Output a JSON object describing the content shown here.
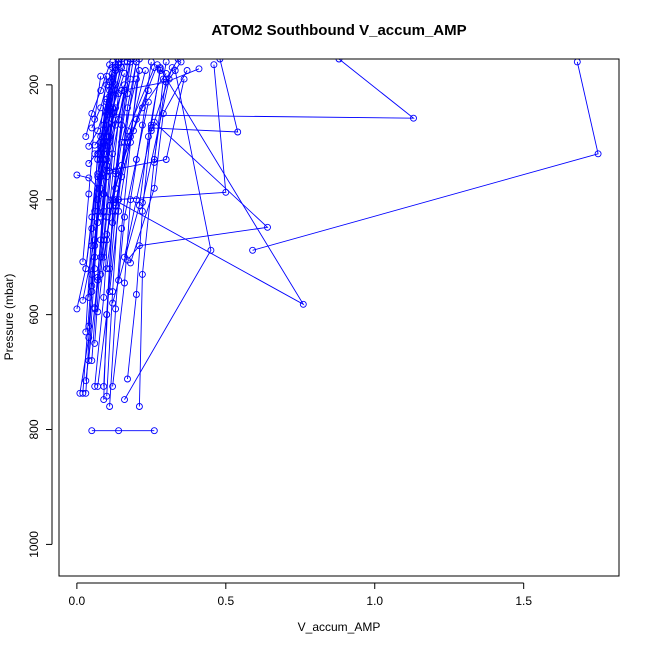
{
  "chart_data": {
    "type": "line",
    "title": "ATOM2 Southbound V_accum_AMP",
    "xlabel": "V_accum_AMP",
    "ylabel": "Pressure (mbar)",
    "xlim": [
      -0.06,
      1.82
    ],
    "ylim": [
      1055,
      155
    ],
    "y_reversed": true,
    "x_ticks": [
      0,
      0.5,
      1.0,
      1.5
    ],
    "x_tick_labels": [
      "0.0",
      "0.5",
      "1.0",
      "1.5"
    ],
    "y_ticks": [
      200,
      400,
      600,
      800,
      1000
    ],
    "y_tick_labels": [
      "200",
      "400",
      "600",
      "800",
      "1000"
    ],
    "grid": false,
    "series_color": "#0000ff",
    "marker": "open-circle",
    "series": [
      {
        "points": [
          [
            0.05,
            802
          ],
          [
            0.14,
            802
          ],
          [
            0.26,
            802
          ]
        ]
      },
      {
        "points": [
          [
            0.03,
            737
          ],
          [
            0.05,
            560
          ],
          [
            0.07,
            400
          ],
          [
            0.1,
            290
          ],
          [
            0.14,
            160
          ]
        ]
      },
      {
        "points": [
          [
            0.02,
            737
          ],
          [
            0.05,
            530
          ],
          [
            0.08,
            380
          ],
          [
            0.12,
            250
          ],
          [
            0.15,
            155
          ]
        ]
      },
      {
        "points": [
          [
            0.01,
            737
          ],
          [
            0.04,
            640
          ],
          [
            0.06,
            480
          ],
          [
            0.09,
            330
          ],
          [
            0.13,
            175
          ]
        ]
      },
      {
        "points": [
          [
            0.07,
            725
          ],
          [
            0.1,
            600
          ],
          [
            0.13,
            420
          ],
          [
            0.16,
            300
          ],
          [
            0.2,
            160
          ]
        ]
      },
      {
        "points": [
          [
            0.06,
            725
          ],
          [
            0.09,
            570
          ],
          [
            0.11,
            410
          ],
          [
            0.14,
            260
          ],
          [
            0.18,
            155
          ]
        ]
      },
      {
        "points": [
          [
            0.12,
            725
          ],
          [
            0.16,
            545
          ],
          [
            0.18,
            400
          ],
          [
            0.22,
            270
          ],
          [
            0.25,
            160
          ]
        ]
      },
      {
        "points": [
          [
            0.09,
            725
          ],
          [
            0.11,
            520
          ],
          [
            0.13,
            350
          ],
          [
            0.17,
            215
          ],
          [
            0.19,
            155
          ]
        ]
      },
      {
        "points": [
          [
            0.03,
            715
          ],
          [
            0.06,
            590
          ],
          [
            0.08,
            470
          ],
          [
            0.1,
            340
          ],
          [
            0.12,
            160
          ]
        ]
      },
      {
        "points": [
          [
            0.17,
            712
          ],
          [
            0.2,
            565
          ],
          [
            0.22,
            420
          ],
          [
            0.25,
            270
          ],
          [
            0.28,
            170
          ]
        ]
      },
      {
        "points": [
          [
            0.11,
            760
          ],
          [
            0.13,
            590
          ],
          [
            0.15,
            450
          ],
          [
            0.18,
            300
          ],
          [
            0.21,
            155
          ]
        ]
      },
      {
        "points": [
          [
            0.21,
            760
          ],
          [
            0.22,
            530
          ],
          [
            0.26,
            330
          ],
          [
            0.3,
            190
          ],
          [
            0.34,
            155
          ]
        ]
      },
      {
        "points": [
          [
            0.16,
            748
          ],
          [
            0.45,
            488
          ],
          [
            0.33,
            175
          ]
        ]
      },
      {
        "points": [
          [
            0.09,
            748
          ],
          [
            0.1,
            600
          ],
          [
            0.12,
            420
          ],
          [
            0.15,
            270
          ],
          [
            0.18,
            160
          ]
        ]
      },
      {
        "points": [
          [
            0.1,
            742
          ],
          [
            0.12,
            560
          ],
          [
            0.14,
            400
          ],
          [
            0.17,
            240
          ],
          [
            0.2,
            160
          ]
        ]
      },
      {
        "points": [
          [
            0.05,
            680
          ],
          [
            0.07,
            540
          ],
          [
            0.09,
            390
          ],
          [
            0.12,
            240
          ],
          [
            0.16,
            160
          ]
        ]
      },
      {
        "points": [
          [
            0.04,
            680
          ],
          [
            0.06,
            520
          ],
          [
            0.08,
            360
          ],
          [
            0.11,
            220
          ],
          [
            0.14,
            155
          ]
        ]
      },
      {
        "points": [
          [
            0.06,
            650
          ],
          [
            0.08,
            500
          ],
          [
            0.1,
            360
          ],
          [
            0.13,
            210
          ]
        ]
      },
      {
        "points": [
          [
            0.03,
            630
          ],
          [
            0.05,
            450
          ],
          [
            0.07,
            320
          ],
          [
            0.1,
            185
          ]
        ]
      },
      {
        "points": [
          [
            0.04,
            620
          ],
          [
            0.06,
            500
          ],
          [
            0.08,
            330
          ],
          [
            0.11,
            195
          ]
        ]
      },
      {
        "points": [
          [
            0.0,
            590
          ],
          [
            0.03,
            520
          ],
          [
            0.07,
            360
          ],
          [
            0.09,
            270
          ],
          [
            0.14,
            165
          ]
        ]
      },
      {
        "points": [
          [
            0.02,
            575
          ],
          [
            0.06,
            470
          ],
          [
            0.09,
            300
          ],
          [
            0.12,
            195
          ]
        ]
      },
      {
        "points": [
          [
            0.04,
            570
          ],
          [
            0.06,
            420
          ],
          [
            0.08,
            300
          ],
          [
            0.12,
            170
          ]
        ]
      },
      {
        "points": [
          [
            0.05,
            550
          ],
          [
            0.07,
            440
          ],
          [
            0.1,
            330
          ],
          [
            0.15,
            210
          ]
        ]
      },
      {
        "points": [
          [
            0.11,
            560
          ],
          [
            0.14,
            420
          ],
          [
            0.18,
            290
          ],
          [
            0.21,
            175
          ]
        ]
      },
      {
        "points": [
          [
            0.12,
            580
          ],
          [
            0.21,
            410
          ],
          [
            0.24,
            290
          ],
          [
            0.28,
            175
          ]
        ]
      },
      {
        "points": [
          [
            0.06,
            588
          ],
          [
            0.09,
            470
          ],
          [
            0.11,
            350
          ],
          [
            0.14,
            215
          ]
        ]
      },
      {
        "points": [
          [
            0.07,
            595
          ],
          [
            0.1,
            470
          ],
          [
            0.13,
            355
          ],
          [
            0.17,
            160
          ]
        ]
      },
      {
        "points": [
          [
            0.08,
            530
          ],
          [
            0.1,
            430
          ],
          [
            0.12,
            320
          ],
          [
            0.16,
            210
          ]
        ]
      },
      {
        "points": [
          [
            0.09,
            500
          ],
          [
            0.12,
            400
          ],
          [
            0.15,
            300
          ],
          [
            0.2,
            190
          ]
        ]
      },
      {
        "points": [
          [
            0.1,
            520
          ],
          [
            0.13,
            410
          ],
          [
            0.17,
            280
          ],
          [
            0.26,
            170
          ]
        ]
      },
      {
        "points": [
          [
            0.16,
            500
          ],
          [
            0.2,
            400
          ],
          [
            0.25,
            280
          ],
          [
            0.32,
            170
          ]
        ]
      },
      {
        "points": [
          [
            0.18,
            510
          ],
          [
            0.26,
            380
          ],
          [
            0.29,
            250
          ],
          [
            0.37,
            175
          ]
        ]
      },
      {
        "points": [
          [
            0.17,
            505
          ],
          [
            0.21,
            480
          ],
          [
            0.64,
            448
          ],
          [
            0.26,
            265
          ]
        ]
      },
      {
        "points": [
          [
            0.02,
            508
          ],
          [
            0.04,
            390
          ],
          [
            0.06,
            260
          ],
          [
            0.08,
            185
          ]
        ]
      },
      {
        "points": [
          [
            0.03,
            520
          ],
          [
            0.05,
            430
          ],
          [
            0.07,
            330
          ],
          [
            0.1,
            225
          ]
        ]
      },
      {
        "points": [
          [
            0.07,
            535
          ],
          [
            0.09,
            420
          ],
          [
            0.11,
            300
          ],
          [
            0.13,
            200
          ]
        ]
      },
      {
        "points": [
          [
            0.14,
            540
          ],
          [
            0.16,
            430
          ],
          [
            0.2,
            330
          ],
          [
            0.24,
            230
          ]
        ]
      },
      {
        "points": [
          [
            0.05,
            480
          ],
          [
            0.07,
            380
          ],
          [
            0.09,
            290
          ],
          [
            0.11,
            210
          ]
        ]
      },
      {
        "points": [
          [
            0.06,
            470
          ],
          [
            0.08,
            360
          ],
          [
            0.1,
            270
          ],
          [
            0.12,
            180
          ]
        ]
      },
      {
        "points": [
          [
            0.1,
            460
          ],
          [
            0.13,
            380
          ],
          [
            0.17,
            300
          ],
          [
            0.23,
            175
          ]
        ]
      },
      {
        "points": [
          [
            0.12,
            440
          ],
          [
            0.15,
            360
          ],
          [
            0.2,
            260
          ],
          [
            0.27,
            165
          ]
        ]
      },
      {
        "points": [
          [
            0.08,
            430
          ],
          [
            0.1,
            340
          ],
          [
            0.13,
            270
          ],
          [
            0.18,
            190
          ]
        ]
      },
      {
        "points": [
          [
            0.07,
            420
          ],
          [
            0.09,
            330
          ],
          [
            0.11,
            245
          ],
          [
            0.13,
            175
          ]
        ]
      },
      {
        "points": [
          [
            0.11,
            410
          ],
          [
            0.15,
            340
          ],
          [
            0.19,
            280
          ],
          [
            0.24,
            210
          ]
        ]
      },
      {
        "points": [
          [
            0.13,
            405
          ],
          [
            0.17,
            300
          ],
          [
            0.22,
            240
          ],
          [
            0.3,
            180
          ]
        ]
      },
      {
        "points": [
          [
            0.0,
            357
          ],
          [
            0.04,
            362
          ],
          [
            0.09,
            390
          ],
          [
            0.76,
            582
          ],
          [
            0.28,
            172
          ]
        ]
      },
      {
        "points": [
          [
            0.59,
            488
          ],
          [
            1.75,
            320
          ],
          [
            1.68,
            160
          ]
        ]
      },
      {
        "points": [
          [
            0.13,
            400
          ],
          [
            0.5,
            387
          ],
          [
            0.46,
            165
          ]
        ]
      },
      {
        "points": [
          [
            0.04,
            337
          ],
          [
            0.08,
            310
          ],
          [
            0.12,
            260
          ],
          [
            0.16,
            200
          ]
        ]
      },
      {
        "points": [
          [
            0.06,
            320
          ],
          [
            0.09,
            300
          ],
          [
            0.12,
            240
          ],
          [
            0.16,
            180
          ]
        ]
      },
      {
        "points": [
          [
            0.04,
            307
          ],
          [
            0.07,
            280
          ],
          [
            0.1,
            230
          ],
          [
            0.13,
            170
          ]
        ]
      },
      {
        "points": [
          [
            0.06,
            305
          ],
          [
            0.08,
            290
          ],
          [
            0.11,
            240
          ],
          [
            0.15,
            170
          ]
        ]
      },
      {
        "points": [
          [
            0.03,
            290
          ],
          [
            0.05,
            250
          ],
          [
            0.08,
            210
          ],
          [
            0.11,
            165
          ]
        ]
      },
      {
        "points": [
          [
            0.05,
            275
          ],
          [
            0.08,
            240
          ],
          [
            0.1,
            200
          ],
          [
            0.13,
            165
          ]
        ]
      },
      {
        "points": [
          [
            0.25,
            275
          ],
          [
            0.54,
            282
          ],
          [
            0.48,
            155
          ]
        ]
      },
      {
        "points": [
          [
            0.1,
            252
          ],
          [
            1.13,
            258
          ],
          [
            0.88,
            155
          ]
        ]
      },
      {
        "points": [
          [
            0.1,
            350
          ],
          [
            0.3,
            330
          ],
          [
            0.36,
            190
          ]
        ]
      },
      {
        "points": [
          [
            0.15,
            210
          ],
          [
            0.3,
            195
          ],
          [
            0.41,
            172
          ]
        ]
      },
      {
        "points": [
          [
            0.26,
            335
          ],
          [
            0.29,
            190
          ],
          [
            0.3,
            160
          ]
        ]
      },
      {
        "points": [
          [
            0.22,
            405
          ],
          [
            0.31,
            190
          ],
          [
            0.35,
            160
          ]
        ]
      },
      {
        "points": [
          [
            0.07,
            355
          ],
          [
            0.09,
            312
          ],
          [
            0.1,
            290
          ]
        ]
      },
      {
        "points": [
          [
            0.09,
            320
          ],
          [
            0.11,
            290
          ],
          [
            0.13,
            240
          ]
        ]
      }
    ]
  }
}
